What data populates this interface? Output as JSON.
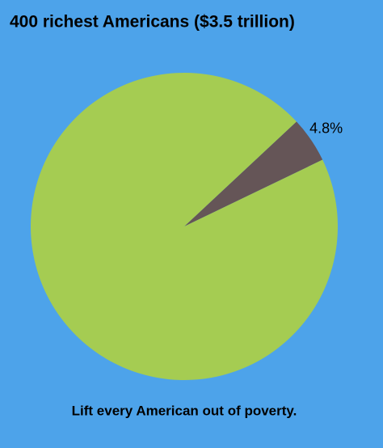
{
  "chart_data": {
    "type": "pie",
    "title": "400 richest Americans ($3.5 trillion)",
    "caption": "Lift every American out of poverty.",
    "values": [
      4.8,
      95.2
    ],
    "value_labels": [
      "4.8%",
      null
    ],
    "colors": [
      "#655557",
      "#a5cc52"
    ],
    "background": "#4da3ea"
  }
}
